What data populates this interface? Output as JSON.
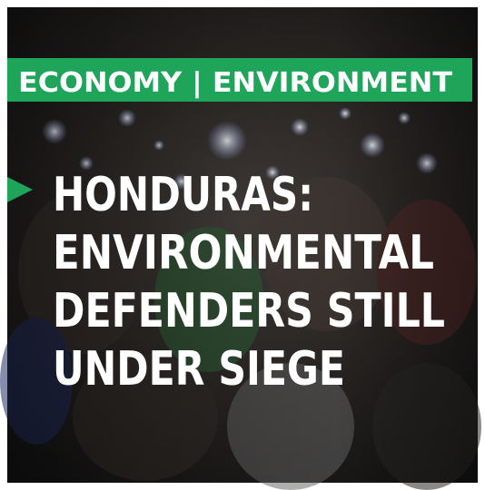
{
  "tag": "ECONOMY | ENVIRONMENT",
  "headline": [
    "HONDURAS:",
    "ENVIRONMENTAL",
    "DEFENDERS STILL",
    "UNDER SIEGE"
  ]
}
